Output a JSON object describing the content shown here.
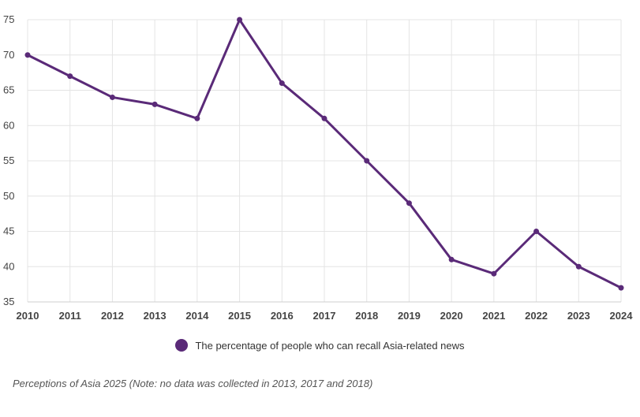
{
  "chart_data": {
    "type": "line",
    "x": [
      "2010",
      "2011",
      "2012",
      "2013",
      "2014",
      "2015",
      "2016",
      "2017",
      "2018",
      "2019",
      "2020",
      "2021",
      "2022",
      "2023",
      "2024"
    ],
    "series": [
      {
        "name": "The percentage of people who can recall Asia-related news",
        "values": [
          70,
          67,
          64,
          63,
          61,
          75,
          66,
          61,
          55,
          49,
          41,
          39,
          45,
          40,
          37
        ],
        "color": "#5a2a78"
      }
    ],
    "yticks": [
      35,
      40,
      45,
      50,
      55,
      60,
      65,
      70,
      75
    ],
    "ylim": [
      35,
      75
    ],
    "grid": true,
    "legend_position": "bottom",
    "title": "",
    "xlabel": "",
    "ylabel": ""
  },
  "legend": {
    "label": "The percentage of people who can recall Asia-related news"
  },
  "footnote": "Perceptions of Asia 2025 (Note: no data was collected in 2013, 2017 and 2018)"
}
